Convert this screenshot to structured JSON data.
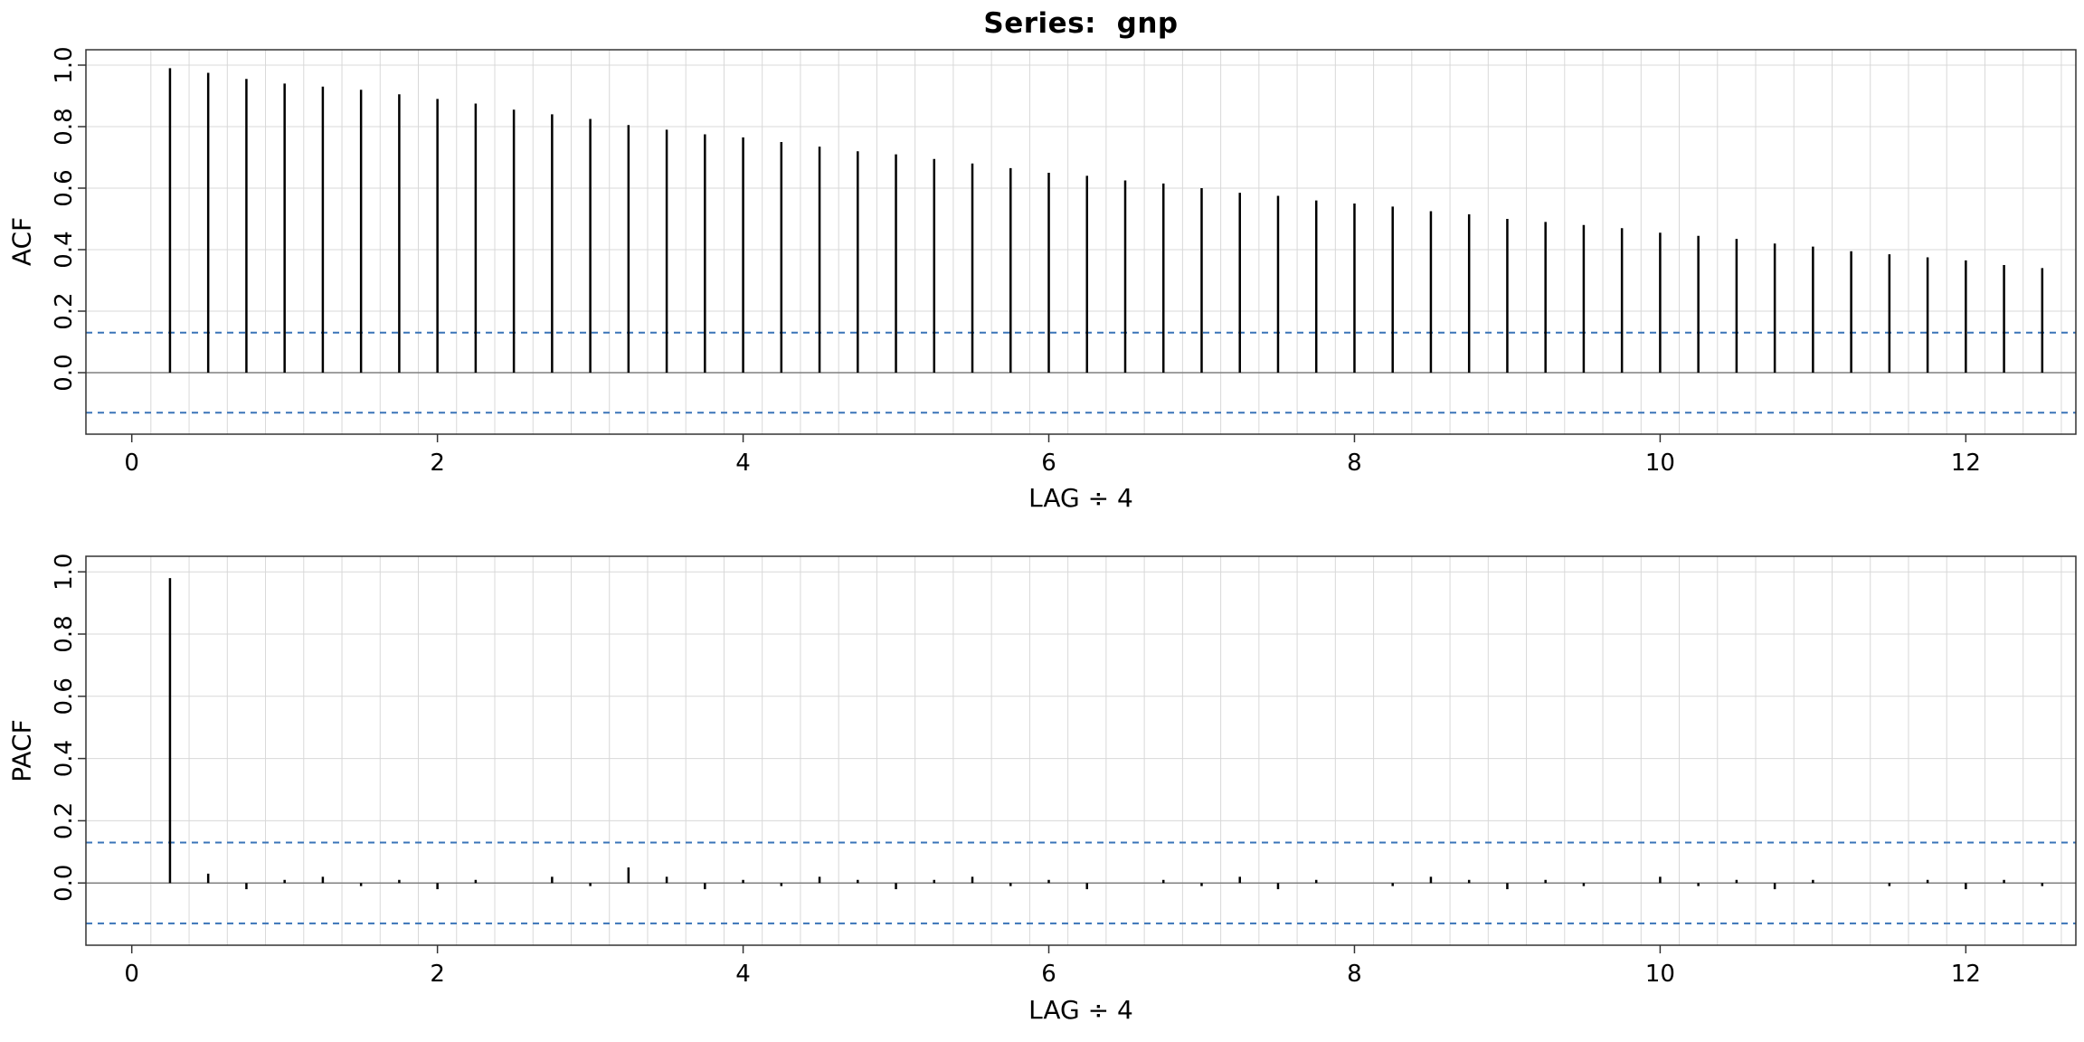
{
  "figure": {
    "background": "#ffffff",
    "title": "Series:  gnp"
  },
  "chart_data": [
    {
      "type": "bar",
      "panel": "ACF",
      "title": "Series:  gnp",
      "xlabel": "LAG ÷ 4",
      "ylabel": "ACF",
      "x": [
        0.25,
        0.5,
        0.75,
        1,
        1.25,
        1.5,
        1.75,
        2,
        2.25,
        2.5,
        2.75,
        3,
        3.25,
        3.5,
        3.75,
        4,
        4.25,
        4.5,
        4.75,
        5,
        5.25,
        5.5,
        5.75,
        6,
        6.25,
        6.5,
        6.75,
        7,
        7.25,
        7.5,
        7.75,
        8,
        8.25,
        8.5,
        8.75,
        9,
        9.25,
        9.5,
        9.75,
        10,
        10.25,
        10.5,
        10.75,
        11,
        11.25,
        11.5,
        11.75,
        12,
        12.25,
        12.5
      ],
      "values": [
        0.99,
        0.975,
        0.955,
        0.94,
        0.93,
        0.92,
        0.905,
        0.89,
        0.875,
        0.855,
        0.84,
        0.825,
        0.805,
        0.79,
        0.775,
        0.765,
        0.75,
        0.735,
        0.72,
        0.71,
        0.695,
        0.68,
        0.665,
        0.65,
        0.64,
        0.625,
        0.615,
        0.6,
        0.585,
        0.575,
        0.56,
        0.55,
        0.54,
        0.525,
        0.515,
        0.5,
        0.49,
        0.48,
        0.47,
        0.455,
        0.445,
        0.435,
        0.42,
        0.41,
        0.395,
        0.385,
        0.375,
        0.365,
        0.35,
        0.34
      ],
      "confidence_bounds": [
        0.13,
        -0.13
      ],
      "xlim": [
        -0.3,
        12.72
      ],
      "ylim": [
        -0.2,
        1.05
      ],
      "xticks": [
        0,
        2,
        4,
        6,
        8,
        10,
        12
      ],
      "yticks": [
        0,
        0.2,
        0.4,
        0.6,
        0.8,
        1
      ],
      "grid": true,
      "legend": "none",
      "colors": {
        "spike": "#000000",
        "confidence": "#3a74b8",
        "grid": "#d8d8d8",
        "axis": "#333333",
        "zero_line": "#808080"
      }
    },
    {
      "type": "bar",
      "panel": "PACF",
      "title": "",
      "xlabel": "LAG ÷ 4",
      "ylabel": "PACF",
      "x": [
        0.25,
        0.5,
        0.75,
        1,
        1.25,
        1.5,
        1.75,
        2,
        2.25,
        2.5,
        2.75,
        3,
        3.25,
        3.5,
        3.75,
        4,
        4.25,
        4.5,
        4.75,
        5,
        5.25,
        5.5,
        5.75,
        6,
        6.25,
        6.5,
        6.75,
        7,
        7.25,
        7.5,
        7.75,
        8,
        8.25,
        8.5,
        8.75,
        9,
        9.25,
        9.5,
        9.75,
        10,
        10.25,
        10.5,
        10.75,
        11,
        11.25,
        11.5,
        11.75,
        12,
        12.25,
        12.5
      ],
      "values": [
        0.98,
        0.03,
        -0.02,
        0.01,
        0.02,
        -0.01,
        0.01,
        -0.02,
        0.01,
        0,
        0.02,
        -0.01,
        0.05,
        0.02,
        -0.02,
        0.01,
        -0.01,
        0.02,
        0.01,
        -0.02,
        0.01,
        0.02,
        -0.01,
        0.01,
        -0.02,
        0,
        0.01,
        -0.01,
        0.02,
        -0.02,
        0.01,
        0,
        -0.01,
        0.02,
        0.01,
        -0.02,
        0.01,
        -0.01,
        0,
        0.02,
        -0.01,
        0.01,
        -0.02,
        0.01,
        0,
        -0.01,
        0.01,
        -0.02,
        0.01,
        -0.01
      ],
      "confidence_bounds": [
        0.13,
        -0.13
      ],
      "xlim": [
        -0.3,
        12.72
      ],
      "ylim": [
        -0.2,
        1.05
      ],
      "xticks": [
        0,
        2,
        4,
        6,
        8,
        10,
        12
      ],
      "yticks": [
        0,
        0.2,
        0.4,
        0.6,
        0.8,
        1
      ],
      "grid": true,
      "legend": "none",
      "colors": {
        "spike": "#000000",
        "confidence": "#3a74b8",
        "grid": "#d8d8d8",
        "axis": "#333333",
        "zero_line": "#808080"
      }
    }
  ]
}
